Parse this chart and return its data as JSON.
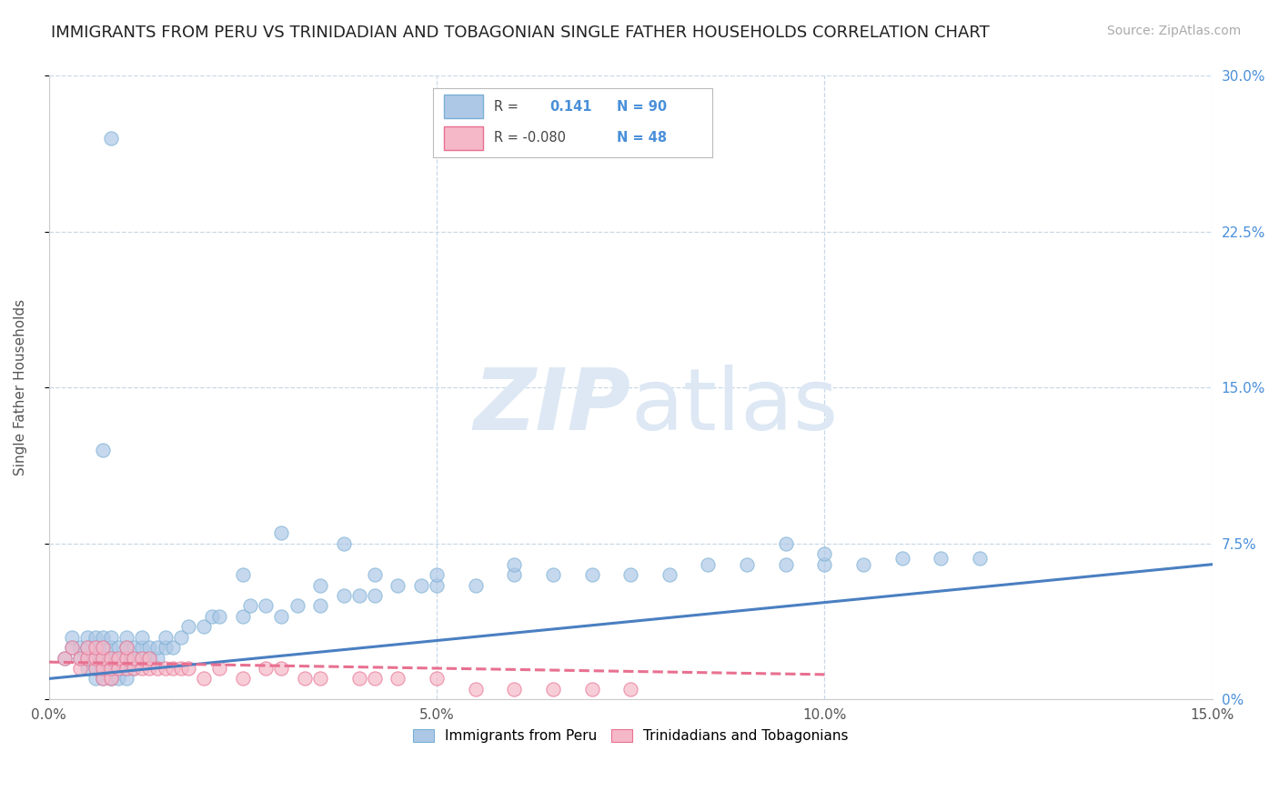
{
  "title": "IMMIGRANTS FROM PERU VS TRINIDADIAN AND TOBAGONIAN SINGLE FATHER HOUSEHOLDS CORRELATION CHART",
  "source": "Source: ZipAtlas.com",
  "ylabel": "Single Father Households",
  "legend_label1": "Immigrants from Peru",
  "legend_label2": "Trinidadians and Tobagonians",
  "xlim": [
    0.0,
    0.15
  ],
  "ylim": [
    0.0,
    0.3
  ],
  "xticks": [
    0.0,
    0.05,
    0.1,
    0.15
  ],
  "xtick_labels": [
    "0.0%",
    "5.0%",
    "10.0%",
    "15.0%"
  ],
  "ytick_labels_right": [
    "0%",
    "7.5%",
    "15.0%",
    "22.5%",
    "30.0%"
  ],
  "yticks_right": [
    0.0,
    0.075,
    0.15,
    0.225,
    0.3
  ],
  "blue_color": "#adc8e6",
  "blue_edge_color": "#7aafd4",
  "pink_color": "#f5b8c8",
  "pink_edge_color": "#e87090",
  "blue_line_color": "#4a7fc1",
  "pink_line_color": "#e87090",
  "background_color": "#ffffff",
  "grid_color": "#c8d8e8",
  "watermark_color": "#dde8f4",
  "blue_scatter_x": [
    0.002,
    0.003,
    0.003,
    0.004,
    0.004,
    0.005,
    0.005,
    0.005,
    0.005,
    0.006,
    0.006,
    0.006,
    0.006,
    0.006,
    0.007,
    0.007,
    0.007,
    0.007,
    0.007,
    0.008,
    0.008,
    0.008,
    0.008,
    0.008,
    0.008,
    0.009,
    0.009,
    0.009,
    0.009,
    0.01,
    0.01,
    0.01,
    0.01,
    0.01,
    0.011,
    0.011,
    0.011,
    0.012,
    0.012,
    0.012,
    0.013,
    0.013,
    0.014,
    0.014,
    0.015,
    0.015,
    0.016,
    0.017,
    0.018,
    0.02,
    0.021,
    0.022,
    0.025,
    0.026,
    0.028,
    0.03,
    0.032,
    0.035,
    0.038,
    0.04,
    0.042,
    0.045,
    0.048,
    0.05,
    0.055,
    0.06,
    0.065,
    0.07,
    0.075,
    0.08,
    0.085,
    0.09,
    0.095,
    0.1,
    0.105,
    0.11,
    0.115,
    0.12,
    0.007,
    0.008,
    0.025,
    0.03,
    0.035,
    0.038,
    0.042,
    0.05,
    0.06,
    0.095,
    0.1
  ],
  "blue_scatter_y": [
    0.02,
    0.025,
    0.03,
    0.02,
    0.025,
    0.015,
    0.02,
    0.025,
    0.03,
    0.015,
    0.02,
    0.025,
    0.03,
    0.01,
    0.01,
    0.015,
    0.02,
    0.025,
    0.03,
    0.01,
    0.015,
    0.02,
    0.025,
    0.03,
    0.01,
    0.015,
    0.02,
    0.025,
    0.01,
    0.01,
    0.015,
    0.02,
    0.025,
    0.03,
    0.015,
    0.02,
    0.025,
    0.02,
    0.025,
    0.03,
    0.02,
    0.025,
    0.02,
    0.025,
    0.025,
    0.03,
    0.025,
    0.03,
    0.035,
    0.035,
    0.04,
    0.04,
    0.04,
    0.045,
    0.045,
    0.04,
    0.045,
    0.045,
    0.05,
    0.05,
    0.05,
    0.055,
    0.055,
    0.055,
    0.055,
    0.06,
    0.06,
    0.06,
    0.06,
    0.06,
    0.065,
    0.065,
    0.065,
    0.065,
    0.065,
    0.068,
    0.068,
    0.068,
    0.12,
    0.27,
    0.06,
    0.08,
    0.055,
    0.075,
    0.06,
    0.06,
    0.065,
    0.075,
    0.07
  ],
  "pink_scatter_x": [
    0.002,
    0.003,
    0.004,
    0.004,
    0.005,
    0.005,
    0.006,
    0.006,
    0.006,
    0.007,
    0.007,
    0.007,
    0.007,
    0.008,
    0.008,
    0.008,
    0.009,
    0.009,
    0.01,
    0.01,
    0.01,
    0.011,
    0.011,
    0.012,
    0.012,
    0.013,
    0.013,
    0.014,
    0.015,
    0.016,
    0.017,
    0.018,
    0.02,
    0.022,
    0.025,
    0.028,
    0.03,
    0.033,
    0.035,
    0.04,
    0.042,
    0.045,
    0.05,
    0.055,
    0.06,
    0.065,
    0.07,
    0.075
  ],
  "pink_scatter_y": [
    0.02,
    0.025,
    0.015,
    0.02,
    0.02,
    0.025,
    0.015,
    0.02,
    0.025,
    0.01,
    0.015,
    0.02,
    0.025,
    0.01,
    0.015,
    0.02,
    0.015,
    0.02,
    0.015,
    0.02,
    0.025,
    0.015,
    0.02,
    0.015,
    0.02,
    0.015,
    0.02,
    0.015,
    0.015,
    0.015,
    0.015,
    0.015,
    0.01,
    0.015,
    0.01,
    0.015,
    0.015,
    0.01,
    0.01,
    0.01,
    0.01,
    0.01,
    0.01,
    0.005,
    0.005,
    0.005,
    0.005,
    0.005
  ],
  "blue_trend_x": [
    0.0,
    0.15
  ],
  "blue_trend_y": [
    0.01,
    0.065
  ],
  "pink_trend_x": [
    0.0,
    0.1
  ],
  "pink_trend_y": [
    0.018,
    0.012
  ],
  "watermark_zip": "ZIP",
  "watermark_atlas": "atlas",
  "title_fontsize": 13,
  "label_fontsize": 11,
  "tick_fontsize": 11,
  "source_fontsize": 10
}
